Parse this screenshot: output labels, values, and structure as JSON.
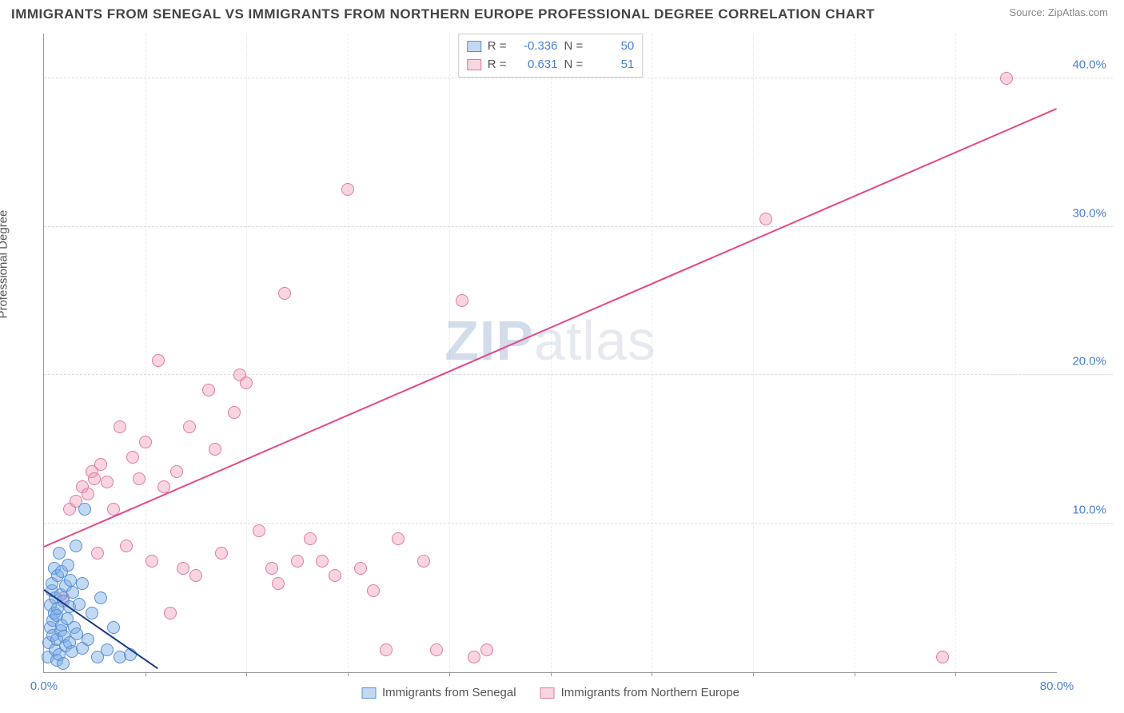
{
  "title": "IMMIGRANTS FROM SENEGAL VS IMMIGRANTS FROM NORTHERN EUROPE PROFESSIONAL DEGREE CORRELATION CHART",
  "source": "Source: ZipAtlas.com",
  "ylabel": "Professional Degree",
  "watermark_zip": "ZIP",
  "watermark_rest": "atlas",
  "chart": {
    "type": "scatter",
    "background": "#ffffff",
    "grid_color": "#dddddd",
    "axis_color": "#999999",
    "xlim": [
      0,
      80
    ],
    "ylim": [
      0,
      43
    ],
    "x_ticks_major": [
      0,
      80
    ],
    "x_ticks_minor": [
      8,
      16,
      24,
      32,
      40,
      48,
      56,
      64,
      72
    ],
    "y_ticks_major": [
      10,
      20,
      30,
      40
    ],
    "x_tick_labels": {
      "0": "0.0%",
      "80": "80.0%"
    },
    "y_tick_labels": {
      "10": "10.0%",
      "20": "20.0%",
      "30": "30.0%",
      "40": "40.0%"
    },
    "tick_label_color": "#4a7fd6",
    "tick_label_fontsize": 15
  },
  "series": [
    {
      "name": "Immigrants from Senegal",
      "fill": "rgba(120,170,230,0.45)",
      "stroke": "#5a8fd0",
      "trend_color": "#1a3a8a",
      "R": "-0.336",
      "N": "50",
      "trend": {
        "x1": 0,
        "y1": 5.6,
        "x2": 9,
        "y2": 0.3
      },
      "points": [
        [
          0.3,
          1.0
        ],
        [
          0.4,
          2.0
        ],
        [
          0.5,
          3.0
        ],
        [
          0.5,
          4.5
        ],
        [
          0.6,
          5.5
        ],
        [
          0.6,
          6.0
        ],
        [
          0.7,
          2.5
        ],
        [
          0.7,
          3.5
        ],
        [
          0.8,
          4.0
        ],
        [
          0.8,
          7.0
        ],
        [
          0.9,
          1.5
        ],
        [
          0.9,
          5.0
        ],
        [
          1.0,
          0.8
        ],
        [
          1.0,
          2.2
        ],
        [
          1.0,
          3.8
        ],
        [
          1.1,
          6.5
        ],
        [
          1.1,
          4.3
        ],
        [
          1.2,
          8.0
        ],
        [
          1.2,
          1.2
        ],
        [
          1.3,
          2.8
        ],
        [
          1.3,
          5.2
        ],
        [
          1.4,
          3.2
        ],
        [
          1.4,
          6.8
        ],
        [
          1.5,
          0.6
        ],
        [
          1.5,
          4.8
        ],
        [
          1.6,
          2.4
        ],
        [
          1.7,
          5.8
        ],
        [
          1.7,
          1.8
        ],
        [
          1.8,
          3.6
        ],
        [
          1.9,
          7.2
        ],
        [
          2.0,
          2.0
        ],
        [
          2.0,
          4.4
        ],
        [
          2.1,
          6.2
        ],
        [
          2.2,
          1.4
        ],
        [
          2.3,
          5.4
        ],
        [
          2.4,
          3.0
        ],
        [
          2.5,
          8.5
        ],
        [
          2.6,
          2.6
        ],
        [
          2.8,
          4.6
        ],
        [
          3.0,
          1.6
        ],
        [
          3.0,
          6.0
        ],
        [
          3.2,
          11.0
        ],
        [
          3.5,
          2.2
        ],
        [
          3.8,
          4.0
        ],
        [
          4.2,
          1.0
        ],
        [
          4.5,
          5.0
        ],
        [
          5.0,
          1.5
        ],
        [
          5.5,
          3.0
        ],
        [
          6.0,
          1.0
        ],
        [
          6.8,
          1.2
        ]
      ]
    },
    {
      "name": "Immigrants from Northern Europe",
      "fill": "rgba(240,150,180,0.40)",
      "stroke": "#e07aa0",
      "trend_color": "#e54787",
      "R": "0.631",
      "N": "51",
      "trend": {
        "x1": 0,
        "y1": 8.5,
        "x2": 80,
        "y2": 38.0
      },
      "points": [
        [
          1.5,
          5.0
        ],
        [
          2.0,
          11.0
        ],
        [
          2.5,
          11.5
        ],
        [
          3.0,
          12.5
        ],
        [
          3.5,
          12.0
        ],
        [
          3.8,
          13.5
        ],
        [
          4.0,
          13.0
        ],
        [
          4.2,
          8.0
        ],
        [
          4.5,
          14.0
        ],
        [
          5.0,
          12.8
        ],
        [
          5.5,
          11.0
        ],
        [
          6.0,
          16.5
        ],
        [
          6.5,
          8.5
        ],
        [
          7.0,
          14.5
        ],
        [
          7.5,
          13.0
        ],
        [
          8.0,
          15.5
        ],
        [
          8.5,
          7.5
        ],
        [
          9.0,
          21.0
        ],
        [
          9.5,
          12.5
        ],
        [
          10.0,
          4.0
        ],
        [
          10.5,
          13.5
        ],
        [
          11.0,
          7.0
        ],
        [
          11.5,
          16.5
        ],
        [
          12.0,
          6.5
        ],
        [
          13.0,
          19.0
        ],
        [
          13.5,
          15.0
        ],
        [
          14.0,
          8.0
        ],
        [
          15.0,
          17.5
        ],
        [
          15.5,
          20.0
        ],
        [
          16.0,
          19.5
        ],
        [
          17.0,
          9.5
        ],
        [
          18.0,
          7.0
        ],
        [
          18.5,
          6.0
        ],
        [
          19.0,
          25.5
        ],
        [
          20.0,
          7.5
        ],
        [
          21.0,
          9.0
        ],
        [
          22.0,
          7.5
        ],
        [
          23.0,
          6.5
        ],
        [
          24.0,
          32.5
        ],
        [
          25.0,
          7.0
        ],
        [
          26.0,
          5.5
        ],
        [
          27.0,
          1.5
        ],
        [
          28.0,
          9.0
        ],
        [
          30.0,
          7.5
        ],
        [
          31.0,
          1.5
        ],
        [
          33.0,
          25.0
        ],
        [
          34.0,
          1.0
        ],
        [
          35.0,
          1.5
        ],
        [
          57.0,
          30.5
        ],
        [
          76.0,
          40.0
        ],
        [
          71.0,
          1.0
        ]
      ]
    }
  ],
  "legend_top": {
    "r_label": "R =",
    "n_label": "N ="
  }
}
